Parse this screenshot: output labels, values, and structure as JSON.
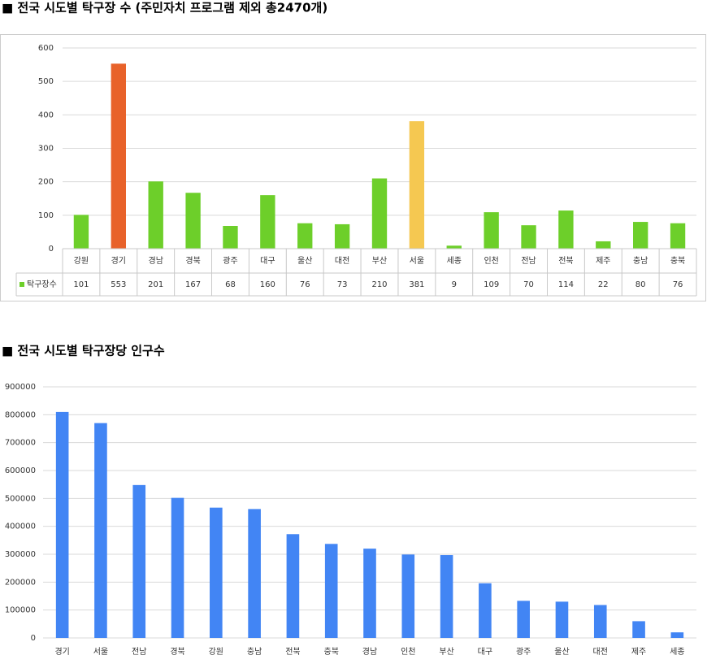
{
  "chart_data": [
    {
      "type": "bar",
      "title": "■ 전국 시도별 탁구장 수 (주민자치 프로그램 제외 총2470개)",
      "categories": [
        "강원",
        "경기",
        "경남",
        "경북",
        "광주",
        "대구",
        "울산",
        "대전",
        "부산",
        "서울",
        "세종",
        "인천",
        "전남",
        "전북",
        "제주",
        "충남",
        "충북"
      ],
      "series": [
        {
          "name": "탁구장수",
          "color": "#6dcf2a",
          "colors": [
            "#6dcf2a",
            "#e8622a",
            "#6dcf2a",
            "#6dcf2a",
            "#6dcf2a",
            "#6dcf2a",
            "#6dcf2a",
            "#6dcf2a",
            "#6dcf2a",
            "#f5c851",
            "#6dcf2a",
            "#6dcf2a",
            "#6dcf2a",
            "#6dcf2a",
            "#6dcf2a",
            "#6dcf2a",
            "#6dcf2a"
          ],
          "values": [
            101,
            553,
            201,
            167,
            68,
            160,
            76,
            73,
            210,
            381,
            9,
            109,
            70,
            114,
            22,
            80,
            76
          ]
        }
      ],
      "ylim": [
        0,
        600
      ],
      "yticks": [
        0,
        100,
        200,
        300,
        400,
        500,
        600
      ],
      "grid": true,
      "data_table": true
    },
    {
      "type": "bar",
      "title": "■ 전국 시도별 탁구장당 인구수",
      "categories": [
        "경기",
        "서울",
        "전남",
        "경북",
        "강원",
        "충남",
        "전북",
        "충북",
        "경남",
        "인천",
        "부산",
        "대구",
        "광주",
        "울산",
        "대전",
        "제주",
        "세종"
      ],
      "series": [
        {
          "color": "#4285f4",
          "values": [
            810000,
            770000,
            548000,
            502000,
            467000,
            462000,
            372000,
            337000,
            320000,
            299000,
            297000,
            196000,
            133000,
            130000,
            118000,
            60000,
            20000
          ]
        }
      ],
      "ylim": [
        0,
        900000
      ],
      "yticks": [
        0,
        100000,
        200000,
        300000,
        400000,
        500000,
        600000,
        700000,
        800000,
        900000
      ],
      "grid": true,
      "data_table": false
    }
  ]
}
